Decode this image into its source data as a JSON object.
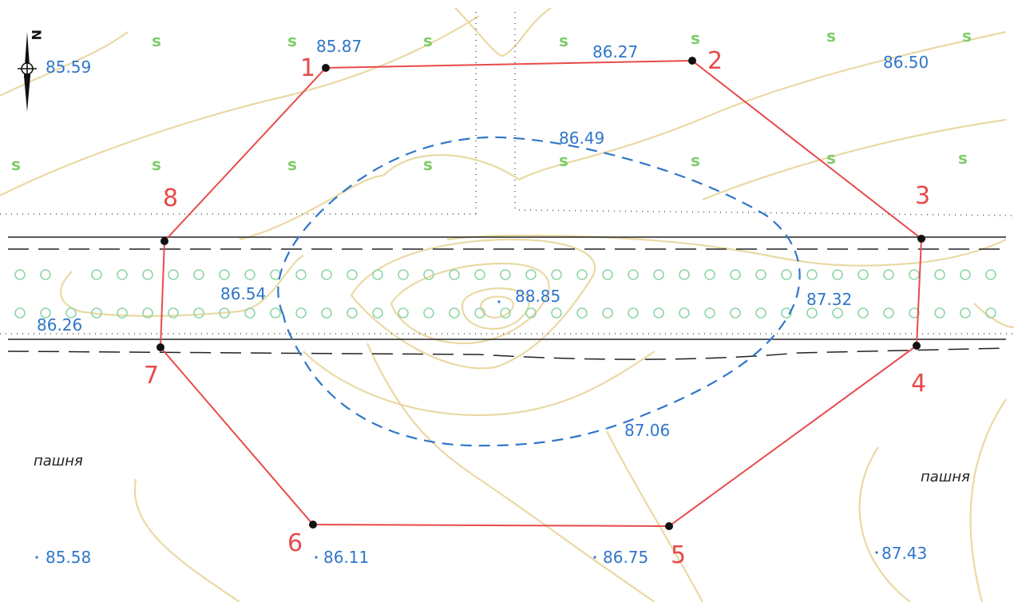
{
  "north_arrow": {
    "label": "N"
  },
  "boundary_points": [
    {
      "label": "1"
    },
    {
      "label": "2"
    },
    {
      "label": "3"
    },
    {
      "label": "4"
    },
    {
      "label": "5"
    },
    {
      "label": "6"
    },
    {
      "label": "7"
    },
    {
      "label": "8"
    }
  ],
  "elevations": [
    "85.59",
    "85.87",
    "86.27",
    "86.50",
    "86.49",
    "86.54",
    "88.85",
    "87.32",
    "86.26",
    "87.06",
    "85.58",
    "86.11",
    "86.75",
    "87.43"
  ],
  "land_labels": [
    "пашня",
    "пашня"
  ],
  "colors": {
    "boundary": "#e84a4a",
    "elevation_text": "#2f76c9",
    "contour": "#e9d9a4",
    "vegetation": "#7fcc6a",
    "tree_rows": "#8fd6a6"
  }
}
